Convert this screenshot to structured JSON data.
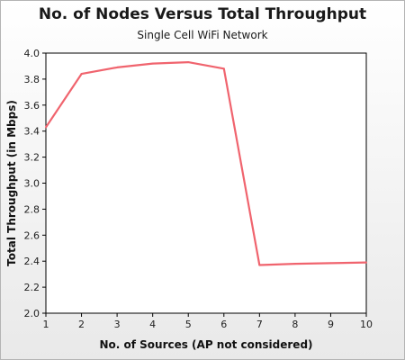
{
  "chart_data": {
    "type": "line",
    "title": "No. of Nodes Versus Total Throughput",
    "subtitle": "Single Cell WiFi Network",
    "xlabel": "No. of Sources (AP not considered)",
    "ylabel": "Total Throughput (in Mbps)",
    "x": [
      1,
      2,
      3,
      4,
      5,
      6,
      7,
      8,
      9,
      10
    ],
    "series": [
      {
        "values": [
          3.43,
          3.84,
          3.89,
          3.92,
          3.93,
          3.88,
          2.37,
          2.38,
          2.385,
          2.39
        ]
      }
    ],
    "xlim": [
      1,
      10
    ],
    "ylim": [
      2.0,
      4.0
    ],
    "xticks": [
      "1",
      "2",
      "3",
      "4",
      "5",
      "6",
      "7",
      "8",
      "9",
      "10"
    ],
    "yticks": [
      "2.0",
      "2.2",
      "2.4",
      "2.6",
      "2.8",
      "3.0",
      "3.2",
      "3.4",
      "3.6",
      "3.8",
      "4.0"
    ],
    "grid": false,
    "legend": "none",
    "colors": {
      "line": "#f0646e",
      "plot_background": "#ffffff",
      "axis": "#000000"
    }
  }
}
